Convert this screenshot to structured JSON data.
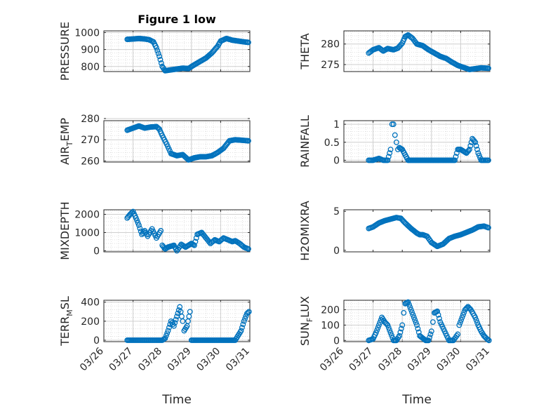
{
  "figure": {
    "title": "Figure 1 low",
    "xlabel": "Time"
  },
  "colors": {
    "marker": "#0072BD",
    "axis": "#262626",
    "grid": "#d9d9d9"
  },
  "x_ticks": [
    "03/26",
    "03/27",
    "03/28",
    "03/29",
    "03/30",
    "03/31"
  ],
  "chart_data": [
    {
      "type": "scatter",
      "ylabel": "PRESSURE",
      "grid": true,
      "xlim": [
        26,
        31
      ],
      "ylim": [
        770,
        1010
      ],
      "yticks": [
        800,
        900,
        1000
      ],
      "x": [
        26.8,
        27.0,
        27.2,
        27.4,
        27.55,
        27.7,
        27.8,
        27.9,
        28.0,
        28.1,
        28.3,
        28.5,
        28.7,
        28.9,
        29.1,
        29.3,
        29.5,
        29.7,
        29.9,
        30.0,
        30.2,
        30.4,
        30.6,
        30.8,
        30.95
      ],
      "y": [
        960,
        962,
        965,
        962,
        958,
        945,
        910,
        860,
        800,
        775,
        780,
        785,
        790,
        788,
        810,
        830,
        850,
        880,
        920,
        950,
        965,
        955,
        950,
        945,
        942
      ]
    },
    {
      "type": "scatter",
      "ylabel": "THETA",
      "grid": true,
      "xlim": [
        26,
        31
      ],
      "ylim": [
        273.3,
        283.2
      ],
      "yticks": [
        275,
        280
      ],
      "x": [
        26.85,
        27.0,
        27.2,
        27.35,
        27.5,
        27.7,
        27.85,
        28.0,
        28.1,
        28.2,
        28.35,
        28.5,
        28.7,
        28.9,
        29.1,
        29.3,
        29.5,
        29.7,
        29.9,
        30.1,
        30.3,
        30.5,
        30.7,
        30.95
      ],
      "y": [
        277.8,
        278.6,
        279.1,
        278.3,
        278.9,
        278.6,
        279.0,
        280.2,
        281.8,
        282.2,
        281.4,
        280.0,
        279.6,
        278.6,
        277.8,
        277.0,
        276.5,
        275.6,
        274.8,
        274.3,
        273.8,
        274.0,
        274.2,
        274.1
      ]
    },
    {
      "type": "scatter",
      "ylabel": "AIR",
      "ylabel_sub": "T",
      "ylabel_suffix": "EMP",
      "grid": true,
      "xlim": [
        26,
        31
      ],
      "ylim": [
        259.5,
        279
      ],
      "yticks": [
        260,
        270,
        280
      ],
      "x": [
        26.8,
        27.0,
        27.2,
        27.4,
        27.6,
        27.8,
        27.9,
        28.0,
        28.15,
        28.3,
        28.5,
        28.7,
        28.9,
        29.1,
        29.3,
        29.5,
        29.7,
        29.9,
        30.1,
        30.3,
        30.5,
        30.7,
        30.95
      ],
      "y": [
        274.5,
        275.5,
        276.5,
        275.5,
        276.0,
        276.2,
        275.0,
        272.0,
        268.0,
        263.5,
        262.5,
        263.0,
        260.5,
        261.5,
        262.0,
        262.0,
        262.5,
        264.0,
        266.0,
        269.5,
        270.0,
        269.8,
        269.5
      ]
    },
    {
      "type": "scatter",
      "ylabel": "RAINFALL",
      "grid": true,
      "xlim": [
        26,
        31
      ],
      "ylim": [
        -0.05,
        1.1
      ],
      "yticks": [
        0,
        0.5,
        1
      ],
      "x": [
        26.85,
        27.0,
        27.2,
        27.35,
        27.5,
        27.6,
        27.65,
        27.7,
        27.75,
        27.8,
        27.85,
        27.9,
        28.0,
        28.2,
        28.4,
        28.6,
        28.8,
        29.0,
        29.2,
        29.4,
        29.6,
        29.8,
        29.9,
        30.0,
        30.1,
        30.2,
        30.3,
        30.4,
        30.5,
        30.6,
        30.7,
        30.8,
        30.95
      ],
      "y": [
        0,
        0,
        0.05,
        0,
        0,
        0.3,
        1.0,
        1.0,
        0.7,
        0.5,
        0.3,
        0.35,
        0.3,
        0,
        0,
        0,
        0,
        0,
        0,
        0,
        0,
        0,
        0.3,
        0.3,
        0.25,
        0.2,
        0.3,
        0.6,
        0.5,
        0.2,
        0,
        0,
        0
      ]
    },
    {
      "type": "scatter",
      "ylabel": "MIXDEPTH",
      "grid": true,
      "xlim": [
        26,
        31
      ],
      "ylim": [
        -60,
        2250
      ],
      "yticks": [
        0,
        1000,
        2000
      ],
      "x": [
        26.8,
        26.9,
        27.0,
        27.1,
        27.2,
        27.3,
        27.4,
        27.5,
        27.65,
        27.8,
        27.95,
        28.0,
        28.1,
        28.2,
        28.4,
        28.5,
        28.65,
        28.8,
        29.0,
        29.1,
        29.2,
        29.35,
        29.5,
        29.65,
        29.8,
        29.95,
        30.1,
        30.25,
        30.4,
        30.5,
        30.65,
        30.8,
        30.95
      ],
      "y": [
        1800,
        2000,
        2150,
        1800,
        1400,
        900,
        1100,
        800,
        1200,
        700,
        1100,
        300,
        100,
        200,
        300,
        0,
        350,
        200,
        400,
        300,
        900,
        1000,
        700,
        400,
        600,
        500,
        700,
        600,
        500,
        550,
        400,
        200,
        100
      ]
    },
    {
      "type": "scatter",
      "ylabel": "H2OMIXRA",
      "grid": false,
      "xlim": [
        26,
        31
      ],
      "ylim": [
        -0.2,
        5.2
      ],
      "yticks": [
        0,
        5
      ],
      "x": [
        26.85,
        27.0,
        27.2,
        27.4,
        27.6,
        27.8,
        27.95,
        28.1,
        28.3,
        28.5,
        28.6,
        28.7,
        28.85,
        29.0,
        29.2,
        29.4,
        29.6,
        29.8,
        30.0,
        30.2,
        30.4,
        30.6,
        30.8,
        30.95
      ],
      "y": [
        2.8,
        3.0,
        3.5,
        3.8,
        4.0,
        4.2,
        4.1,
        3.5,
        2.8,
        2.2,
        2.0,
        2.0,
        1.8,
        1.0,
        0.5,
        0.8,
        1.5,
        1.8,
        2.0,
        2.3,
        2.6,
        3.0,
        3.1,
        2.9
      ]
    },
    {
      "type": "scatter",
      "ylabel": "TERR",
      "ylabel_sub": "M",
      "ylabel_suffix": "SL",
      "grid": true,
      "xlim": [
        26,
        31
      ],
      "ylim": [
        -15,
        420
      ],
      "yticks": [
        0,
        200,
        400
      ],
      "x": [
        26.8,
        27.2,
        27.6,
        28.0,
        28.1,
        28.2,
        28.3,
        28.4,
        28.5,
        28.6,
        28.7,
        28.75,
        28.85,
        28.95,
        29.0,
        29.2,
        29.6,
        30.0,
        30.2,
        30.5,
        30.6,
        30.7,
        30.8,
        30.9,
        30.97
      ],
      "y": [
        0,
        0,
        0,
        0,
        20,
        100,
        200,
        150,
        250,
        350,
        200,
        100,
        150,
        300,
        0,
        0,
        0,
        0,
        0,
        0,
        50,
        100,
        200,
        280,
        300
      ]
    },
    {
      "type": "scatter",
      "ylabel": "SUN",
      "ylabel_sub": "F",
      "ylabel_suffix": "LUX",
      "grid": true,
      "xlim": [
        26,
        31
      ],
      "ylim": [
        -8,
        262
      ],
      "yticks": [
        0,
        100,
        200
      ],
      "x": [
        26.85,
        27.0,
        27.1,
        27.2,
        27.3,
        27.4,
        27.5,
        27.6,
        27.7,
        27.8,
        27.9,
        28.0,
        28.05,
        28.1,
        28.2,
        28.3,
        28.4,
        28.5,
        28.6,
        28.8,
        28.9,
        29.0,
        29.05,
        29.1,
        29.2,
        29.3,
        29.45,
        29.6,
        29.75,
        29.9,
        29.95,
        30.05,
        30.15,
        30.25,
        30.35,
        30.5,
        30.6,
        30.7,
        30.8,
        30.9,
        30.97
      ],
      "y": [
        0,
        10,
        50,
        100,
        150,
        120,
        100,
        50,
        0,
        0,
        30,
        100,
        180,
        240,
        250,
        200,
        150,
        100,
        30,
        0,
        0,
        60,
        120,
        180,
        190,
        120,
        60,
        0,
        0,
        40,
        100,
        150,
        200,
        220,
        200,
        150,
        100,
        60,
        30,
        10,
        0
      ]
    }
  ]
}
